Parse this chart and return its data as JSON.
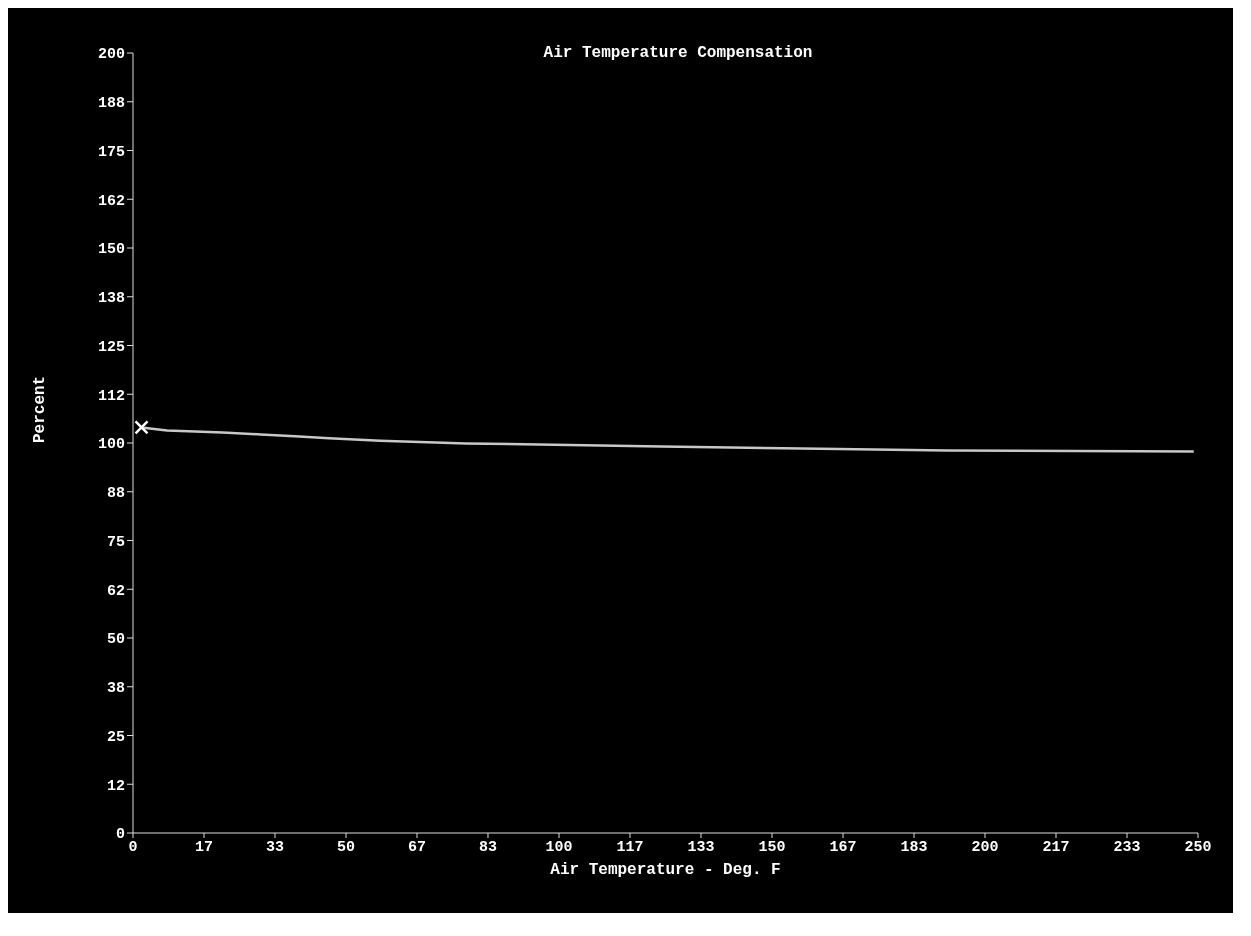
{
  "chart_data": {
    "type": "line",
    "title": "Air Temperature Compensation",
    "xlabel": "Air Temperature - Deg. F",
    "ylabel": "Percent",
    "series": [
      {
        "color": "#c8c8c8",
        "x": [
          2,
          8,
          21,
          30,
          38,
          46,
          58,
          71,
          78,
          124,
          157,
          191,
          249
        ],
        "values": [
          104,
          103.2,
          102.7,
          102.2,
          101.7,
          101.2,
          100.6,
          100.1,
          99.9,
          99.1,
          98.6,
          98.1,
          97.8
        ]
      }
    ],
    "xlim": [
      0,
      250
    ],
    "xticks": [
      0,
      {
        "value": 16.667,
        "label": "17"
      },
      {
        "value": 33.333,
        "label": "33"
      },
      50,
      {
        "value": 66.667,
        "label": "67"
      },
      {
        "value": 83.333,
        "label": "83"
      },
      100,
      {
        "value": 116.667,
        "label": "117"
      },
      {
        "value": 133.333,
        "label": "133"
      },
      150,
      {
        "value": 166.667,
        "label": "167"
      },
      {
        "value": 183.333,
        "label": "183"
      },
      200,
      {
        "value": 216.667,
        "label": "217"
      },
      {
        "value": 233.333,
        "label": "233"
      },
      250
    ],
    "ylim": [
      0,
      200
    ],
    "yticks": [
      0,
      {
        "value": 12.5,
        "label": "12"
      },
      25,
      {
        "value": 37.5,
        "label": "38"
      },
      50,
      {
        "value": 62.5,
        "label": "62"
      },
      75,
      {
        "value": 87.5,
        "label": "88"
      },
      100,
      {
        "value": 112.5,
        "label": "112"
      },
      125,
      {
        "value": 137.5,
        "label": "138"
      },
      150,
      {
        "value": 162.5,
        "label": "162"
      },
      175,
      {
        "value": 187.5,
        "label": "188"
      },
      200
    ],
    "grid": false,
    "marker": "none",
    "line_style": "solid"
  }
}
